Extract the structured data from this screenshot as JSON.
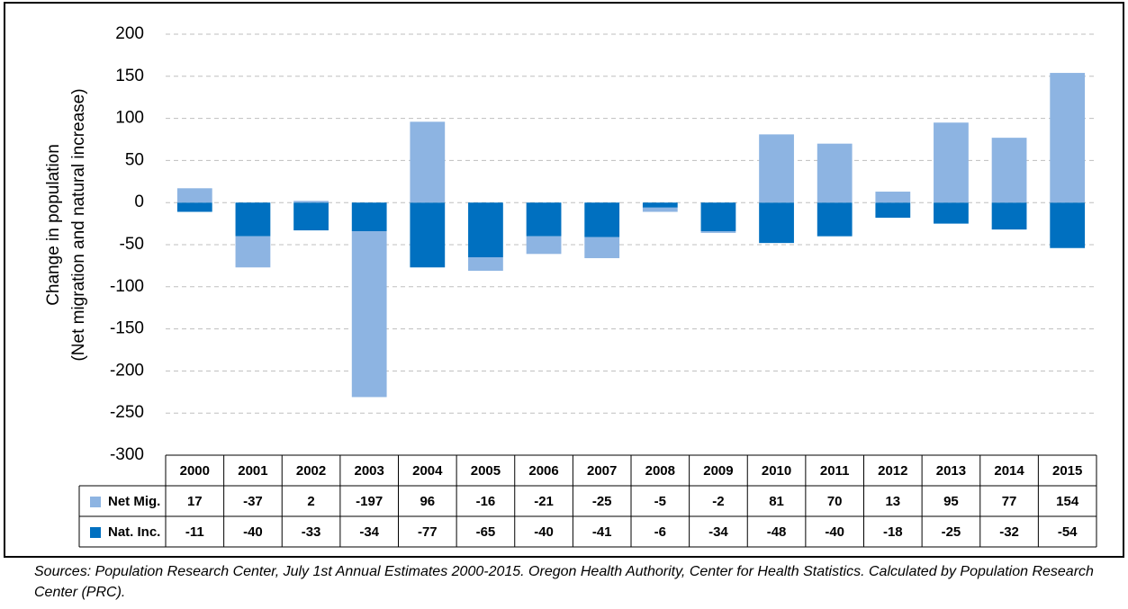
{
  "chart_data": {
    "type": "bar",
    "stacked": true,
    "y_label": [
      "Change in population",
      "(Net migration and natural increase)"
    ],
    "categories": [
      "2000",
      "2001",
      "2002",
      "2003",
      "2004",
      "2005",
      "2006",
      "2007",
      "2008",
      "2009",
      "2010",
      "2011",
      "2012",
      "2013",
      "2014",
      "2015"
    ],
    "series": [
      {
        "name": "Net Mig.",
        "color": "#8db4e2",
        "values": [
          17,
          -37,
          2,
          -197,
          96,
          -16,
          -21,
          -25,
          -5,
          -2,
          81,
          70,
          13,
          95,
          77,
          154
        ]
      },
      {
        "name": "Nat. Inc.",
        "color": "#0070c0",
        "values": [
          -11,
          -40,
          -33,
          -34,
          -77,
          -65,
          -40,
          -41,
          -6,
          -34,
          -48,
          -40,
          -18,
          -25,
          -32,
          -54
        ]
      }
    ],
    "ylim": [
      -300,
      200
    ],
    "yticks": [
      -300,
      -250,
      -200,
      -150,
      -100,
      -50,
      0,
      50,
      100,
      150,
      200
    ],
    "grid": true,
    "data_table": true,
    "source": "Sources: Population Research Center, July 1st Annual Estimates 2000-2015. Oregon Health Authority, Center for Health Statistics. Calculated by Population Research Center (PRC)."
  }
}
